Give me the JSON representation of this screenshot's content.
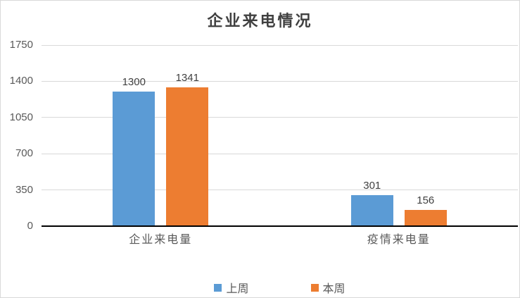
{
  "chart_data": {
    "type": "bar",
    "title": "企业来电情况",
    "categories": [
      "企业来电量",
      "疫情来电量"
    ],
    "series": [
      {
        "name": "上周",
        "color": "#5B9BD5",
        "values": [
          1300,
          301
        ]
      },
      {
        "name": "本周",
        "color": "#ED7D31",
        "values": [
          1341,
          156
        ]
      }
    ],
    "ylim": [
      0,
      1750
    ],
    "yticks": [
      0,
      350,
      700,
      1050,
      1400,
      1750
    ],
    "grid": true,
    "data_labels": true,
    "legend_position": "bottom"
  },
  "style_colors": {
    "grid": "#d9d9d9",
    "axis": "#000000",
    "frame_border": "#d9d9d9",
    "background": "#ffffff",
    "tick_label": "#595959",
    "data_label": "#404040",
    "title": "#404040"
  }
}
